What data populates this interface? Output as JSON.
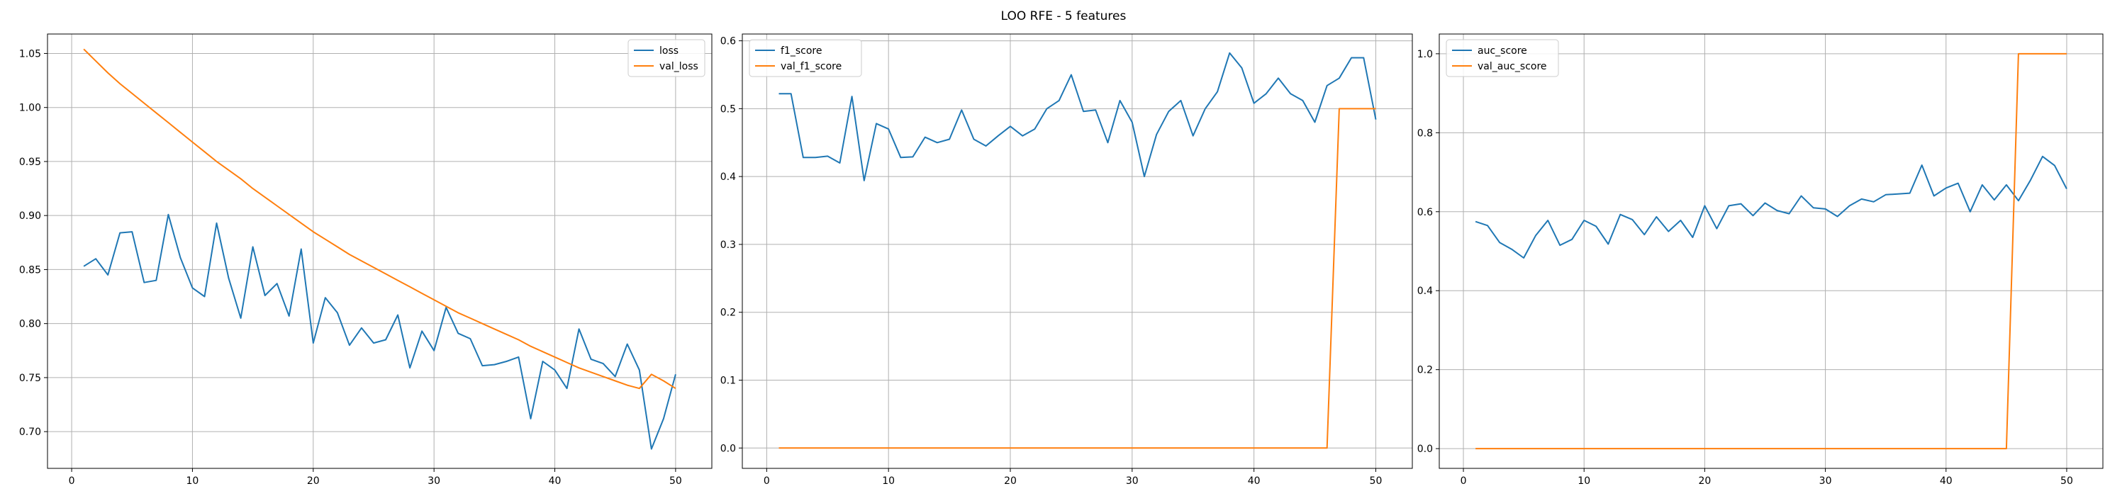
{
  "title": "LOO RFE - 5 features",
  "colors": {
    "series1": "#1f77b4",
    "series2": "#ff7f0e",
    "grid": "#b0b0b0"
  },
  "chart_data": [
    {
      "type": "line",
      "legend_position": "top-right",
      "grid": true,
      "xlim": [
        -2,
        53
      ],
      "ylim": [
        0.666,
        1.068
      ],
      "xticks": [
        0,
        10,
        20,
        30,
        40,
        50
      ],
      "yticks": [
        0.7,
        0.75,
        0.8,
        0.85,
        0.9,
        0.95,
        1.0,
        1.05
      ],
      "ytick_labels": [
        "0.70",
        "0.75",
        "0.80",
        "0.85",
        "0.90",
        "0.95",
        "1.00",
        "1.05"
      ],
      "x": [
        1,
        2,
        3,
        4,
        5,
        6,
        7,
        8,
        9,
        10,
        11,
        12,
        13,
        14,
        15,
        16,
        17,
        18,
        19,
        20,
        21,
        22,
        23,
        24,
        25,
        26,
        27,
        28,
        29,
        30,
        31,
        32,
        33,
        34,
        35,
        36,
        37,
        38,
        39,
        40,
        41,
        42,
        43,
        44,
        45,
        46,
        47,
        48,
        49,
        50
      ],
      "series": [
        {
          "name": "loss",
          "values": [
            0.853,
            0.86,
            0.845,
            0.884,
            0.885,
            0.838,
            0.84,
            0.901,
            0.861,
            0.833,
            0.825,
            0.893,
            0.842,
            0.805,
            0.871,
            0.826,
            0.837,
            0.807,
            0.869,
            0.782,
            0.824,
            0.81,
            0.78,
            0.796,
            0.782,
            0.785,
            0.808,
            0.759,
            0.793,
            0.775,
            0.815,
            0.791,
            0.786,
            0.761,
            0.762,
            0.765,
            0.769,
            0.712,
            0.765,
            0.757,
            0.74,
            0.795,
            0.767,
            0.763,
            0.751,
            0.781,
            0.757,
            0.684,
            0.712,
            0.753
          ]
        },
        {
          "name": "val_loss",
          "values": [
            1.054,
            1.043,
            1.032,
            1.022,
            1.013,
            1.004,
            0.995,
            0.986,
            0.977,
            0.968,
            0.959,
            0.95,
            0.942,
            0.934,
            0.925,
            0.917,
            0.909,
            0.901,
            0.893,
            0.885,
            0.878,
            0.871,
            0.864,
            0.858,
            0.852,
            0.846,
            0.84,
            0.834,
            0.828,
            0.822,
            0.816,
            0.81,
            0.805,
            0.8,
            0.795,
            0.79,
            0.785,
            0.779,
            0.774,
            0.769,
            0.764,
            0.759,
            0.755,
            0.751,
            0.747,
            0.743,
            0.74,
            0.753,
            0.747,
            0.74
          ]
        }
      ]
    },
    {
      "type": "line",
      "legend_position": "top-left",
      "grid": true,
      "xlim": [
        -2,
        53
      ],
      "ylim": [
        -0.03,
        0.61
      ],
      "xticks": [
        0,
        10,
        20,
        30,
        40,
        50
      ],
      "yticks": [
        0.0,
        0.1,
        0.2,
        0.3,
        0.4,
        0.5,
        0.6
      ],
      "ytick_labels": [
        "0.0",
        "0.1",
        "0.2",
        "0.3",
        "0.4",
        "0.5",
        "0.6"
      ],
      "x": [
        1,
        2,
        3,
        4,
        5,
        6,
        7,
        8,
        9,
        10,
        11,
        12,
        13,
        14,
        15,
        16,
        17,
        18,
        19,
        20,
        21,
        22,
        23,
        24,
        25,
        26,
        27,
        28,
        29,
        30,
        31,
        32,
        33,
        34,
        35,
        36,
        37,
        38,
        39,
        40,
        41,
        42,
        43,
        44,
        45,
        46,
        47,
        48,
        49,
        50
      ],
      "series": [
        {
          "name": "f1_score",
          "values": [
            0.522,
            0.522,
            0.428,
            0.428,
            0.43,
            0.42,
            0.518,
            0.394,
            0.478,
            0.47,
            0.428,
            0.429,
            0.458,
            0.45,
            0.455,
            0.498,
            0.455,
            0.445,
            0.46,
            0.474,
            0.46,
            0.47,
            0.5,
            0.512,
            0.55,
            0.496,
            0.498,
            0.45,
            0.512,
            0.48,
            0.4,
            0.462,
            0.496,
            0.512,
            0.46,
            0.5,
            0.525,
            0.582,
            0.56,
            0.508,
            0.522,
            0.545,
            0.522,
            0.512,
            0.48,
            0.534,
            0.545,
            0.575,
            0.575,
            0.484
          ]
        },
        {
          "name": "val_f1_score",
          "values": [
            0,
            0,
            0,
            0,
            0,
            0,
            0,
            0,
            0,
            0,
            0,
            0,
            0,
            0,
            0,
            0,
            0,
            0,
            0,
            0,
            0,
            0,
            0,
            0,
            0,
            0,
            0,
            0,
            0,
            0,
            0,
            0,
            0,
            0,
            0,
            0,
            0,
            0,
            0,
            0,
            0,
            0,
            0,
            0,
            0,
            0,
            0.5,
            0.5,
            0.5,
            0.5
          ]
        }
      ]
    },
    {
      "type": "line",
      "legend_position": "top-left",
      "grid": true,
      "xlim": [
        -2,
        53
      ],
      "ylim": [
        -0.05,
        1.05
      ],
      "xticks": [
        0,
        10,
        20,
        30,
        40,
        50
      ],
      "yticks": [
        0.0,
        0.2,
        0.4,
        0.6,
        0.8,
        1.0
      ],
      "ytick_labels": [
        "0.0",
        "0.2",
        "0.4",
        "0.6",
        "0.8",
        "1.0"
      ],
      "x": [
        1,
        2,
        3,
        4,
        5,
        6,
        7,
        8,
        9,
        10,
        11,
        12,
        13,
        14,
        15,
        16,
        17,
        18,
        19,
        20,
        21,
        22,
        23,
        24,
        25,
        26,
        27,
        28,
        29,
        30,
        31,
        32,
        33,
        34,
        35,
        36,
        37,
        38,
        39,
        40,
        41,
        42,
        43,
        44,
        45,
        46,
        47,
        48,
        49,
        50
      ],
      "series": [
        {
          "name": "auc_score",
          "values": [
            0.575,
            0.565,
            0.522,
            0.505,
            0.483,
            0.54,
            0.578,
            0.515,
            0.53,
            0.578,
            0.563,
            0.518,
            0.593,
            0.58,
            0.542,
            0.587,
            0.55,
            0.578,
            0.535,
            0.615,
            0.557,
            0.615,
            0.62,
            0.59,
            0.622,
            0.603,
            0.595,
            0.64,
            0.61,
            0.607,
            0.588,
            0.615,
            0.632,
            0.625,
            0.643,
            0.645,
            0.647,
            0.718,
            0.64,
            0.66,
            0.672,
            0.6,
            0.668,
            0.63,
            0.668,
            0.628,
            0.68,
            0.74,
            0.717,
            0.658
          ]
        },
        {
          "name": "val_auc_score",
          "values": [
            0,
            0,
            0,
            0,
            0,
            0,
            0,
            0,
            0,
            0,
            0,
            0,
            0,
            0,
            0,
            0,
            0,
            0,
            0,
            0,
            0,
            0,
            0,
            0,
            0,
            0,
            0,
            0,
            0,
            0,
            0,
            0,
            0,
            0,
            0,
            0,
            0,
            0,
            0,
            0,
            0,
            0,
            0,
            0,
            0,
            1,
            1,
            1,
            1,
            1
          ]
        }
      ]
    }
  ]
}
